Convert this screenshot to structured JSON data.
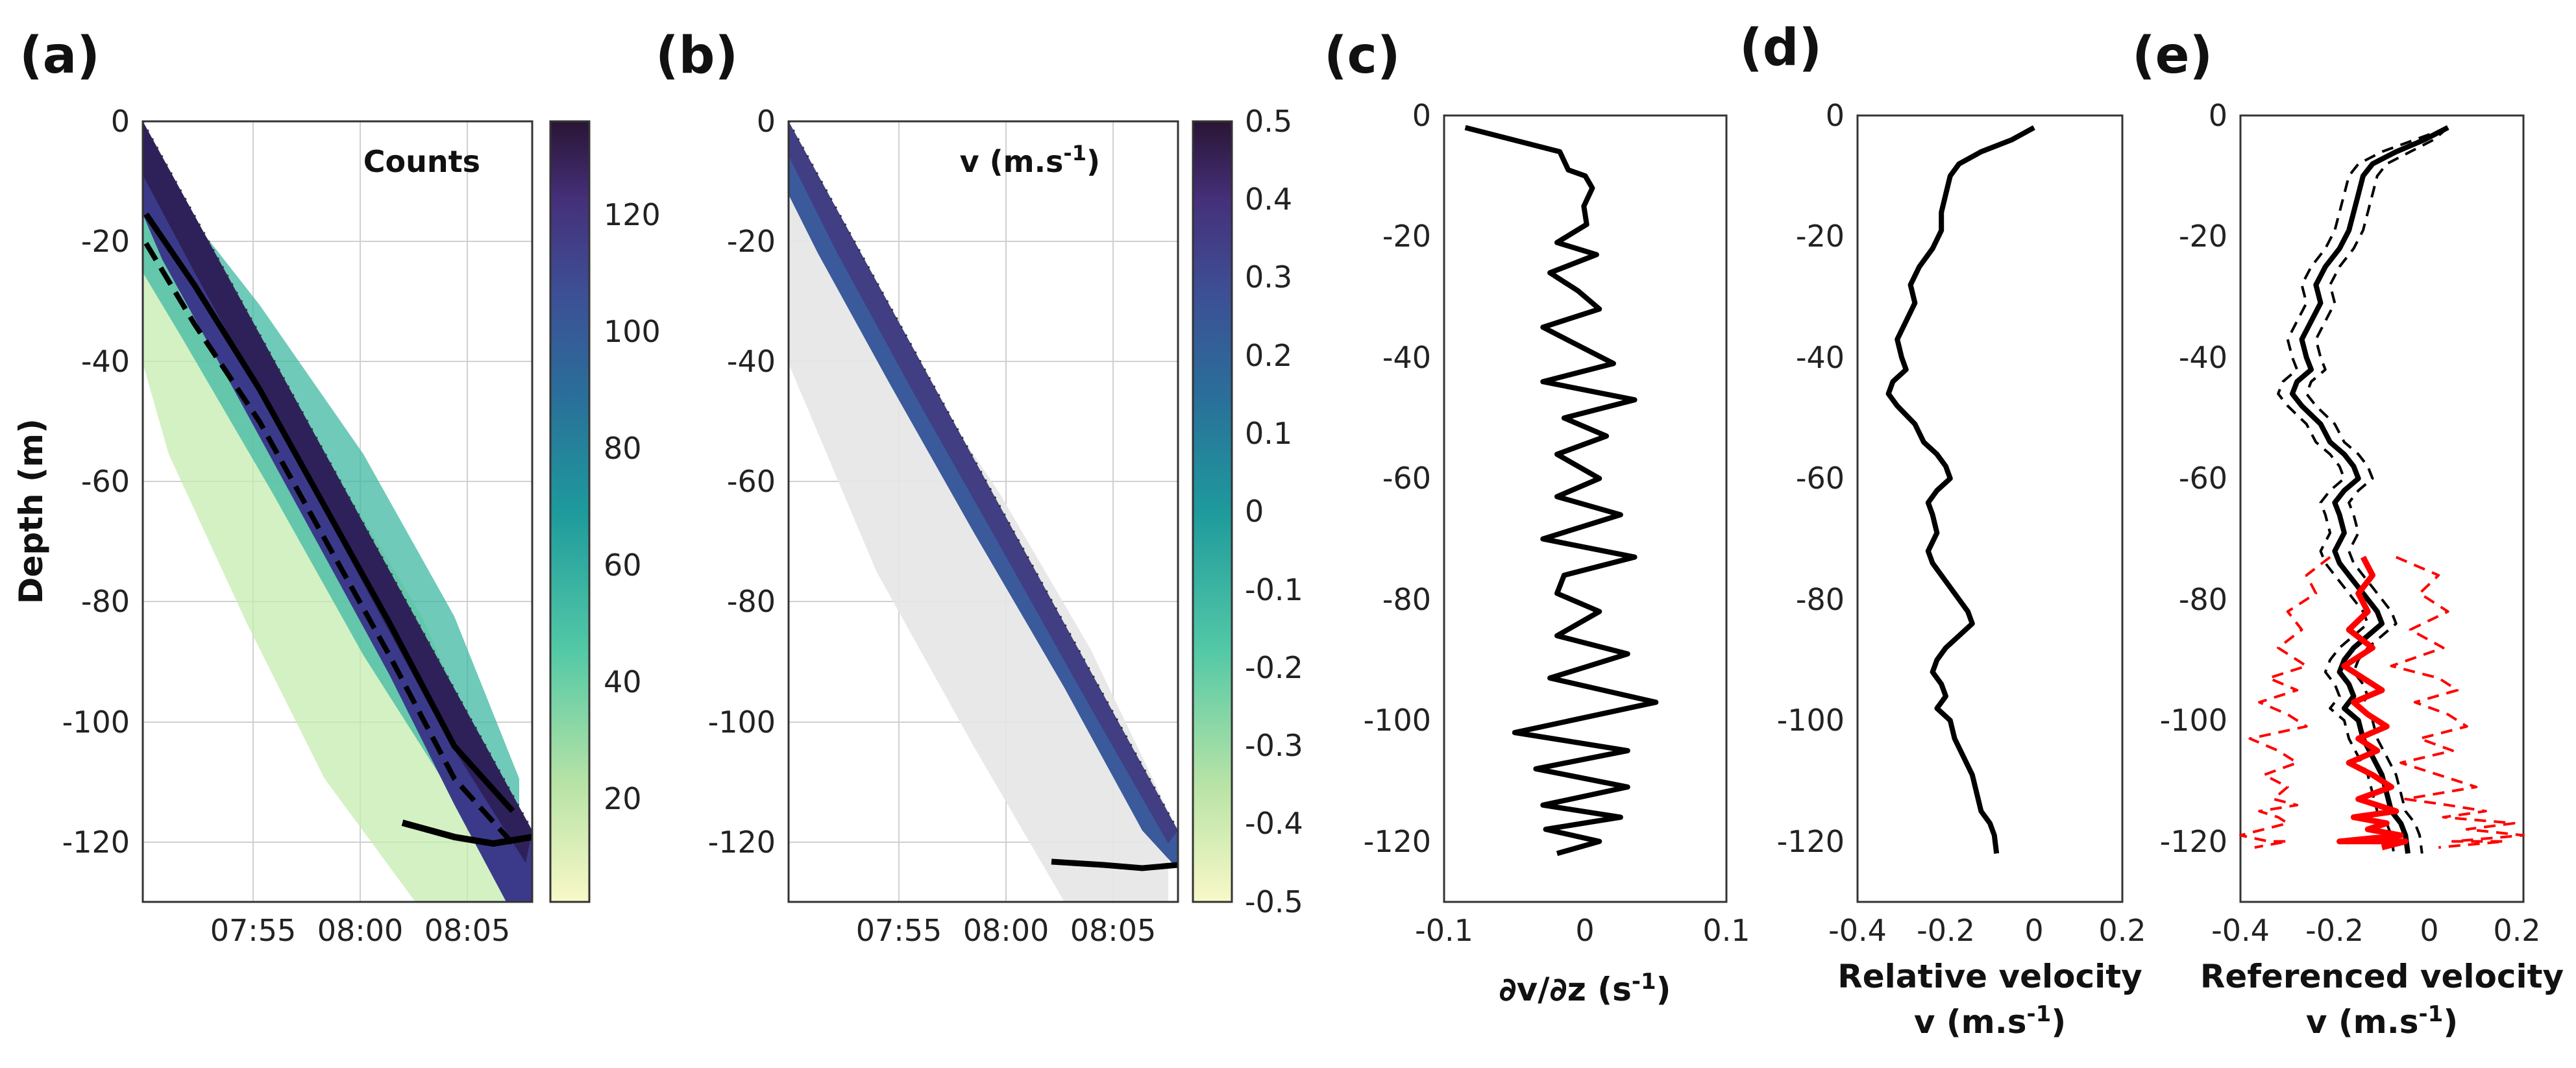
{
  "chart_data": [
    {
      "panel": "(a)",
      "type": "heatmap",
      "ylabel": "Depth (m)",
      "ylim": [
        -130,
        0
      ],
      "yticks": [
        0,
        -20,
        -40,
        -60,
        -80,
        -100,
        -120
      ],
      "xtick_labels": [
        "07:55",
        "08:00",
        "08:05"
      ],
      "inset_label": "Counts",
      "colorbar": {
        "range": [
          0,
          135
        ],
        "ticks": [
          20,
          40,
          60,
          80,
          100,
          120
        ],
        "colors": [
          "#f8f8c8",
          "#b8e3a6",
          "#54c9a6",
          "#1e9a9c",
          "#2a6e9a",
          "#3d4f95",
          "#45307a",
          "#2a1535"
        ]
      }
    },
    {
      "panel": "(b)",
      "type": "heatmap",
      "ylim": [
        -130,
        0
      ],
      "yticks": [
        0,
        -20,
        -40,
        -60,
        -80,
        -100,
        -120
      ],
      "xtick_labels": [
        "07:55",
        "08:00",
        "08:05"
      ],
      "inset_label": "v (m.s",
      "inset_sup": "-1",
      "inset_close": ")",
      "colorbar": {
        "range": [
          -0.5,
          0.5
        ],
        "ticks": [
          "0.5",
          "0.4",
          "0.3",
          "0.2",
          "0.1",
          "0",
          "-0.1",
          "-0.2",
          "-0.3",
          "-0.4",
          "-0.5"
        ]
      }
    },
    {
      "panel": "(c)",
      "type": "line",
      "xlabel": "∂v/∂z (s",
      "xlabel_sup": "-1",
      "xlabel_close": ")",
      "xlim": [
        -0.1,
        0.1
      ],
      "xticks": [
        "-0.1",
        "0",
        "0.1"
      ],
      "ylim": [
        -130,
        0
      ],
      "yticks": [
        0,
        -20,
        -40,
        -60,
        -80,
        -100,
        -120
      ],
      "series": [
        {
          "name": "dvdz",
          "color": "#000000",
          "x": [
            -0.085,
            -0.018,
            -0.012,
            0.0,
            0.005,
            -0.001,
            0.001,
            -0.02,
            0.008,
            -0.025,
            -0.005,
            0.01,
            -0.03,
            -0.005,
            0.02,
            -0.03,
            0.035,
            -0.015,
            0.015,
            -0.02,
            0.01,
            -0.02,
            0.025,
            -0.03,
            0.035,
            -0.015,
            -0.02,
            0.01,
            -0.02,
            0.03,
            -0.025,
            0.05,
            -0.05,
            0.03,
            -0.035,
            0.03,
            -0.03,
            0.025,
            -0.028,
            0.01,
            -0.02
          ],
          "y": [
            -2,
            -6,
            -9,
            -10,
            -12,
            -15,
            -18,
            -21,
            -23,
            -26,
            -29,
            -32,
            -35,
            -38,
            -41,
            -44,
            -47,
            -50,
            -53,
            -56,
            -60,
            -63,
            -66,
            -70,
            -73,
            -76,
            -79,
            -82,
            -86,
            -89,
            -93,
            -97,
            -102,
            -105,
            -108,
            -111,
            -114,
            -116,
            -118,
            -120,
            -122
          ]
        }
      ]
    },
    {
      "panel": "(d)",
      "type": "line",
      "xlabel": "Relative velocity",
      "xlabel2": "v (m.s",
      "xlabel2_sup": "-1",
      "xlabel2_close": ")",
      "xlim": [
        -0.4,
        0.2
      ],
      "xticks": [
        "-0.4",
        "-0.2",
        "0",
        "0.2"
      ],
      "ylim": [
        -130,
        0
      ],
      "yticks": [
        0,
        -20,
        -40,
        -60,
        -80,
        -100,
        -120
      ],
      "series": [
        {
          "name": "relative",
          "color": "#000000",
          "x": [
            0.0,
            -0.05,
            -0.12,
            -0.17,
            -0.19,
            -0.2,
            -0.21,
            -0.21,
            -0.23,
            -0.26,
            -0.28,
            -0.27,
            -0.29,
            -0.31,
            -0.3,
            -0.29,
            -0.32,
            -0.33,
            -0.31,
            -0.27,
            -0.25,
            -0.22,
            -0.2,
            -0.19,
            -0.22,
            -0.24,
            -0.23,
            -0.22,
            -0.24,
            -0.23,
            -0.21,
            -0.19,
            -0.17,
            -0.15,
            -0.14,
            -0.17,
            -0.2,
            -0.22,
            -0.23,
            -0.21,
            -0.2,
            -0.22,
            -0.19,
            -0.18,
            -0.16,
            -0.14,
            -0.13,
            -0.12,
            -0.1,
            -0.09,
            -0.085
          ],
          "y": [
            -2,
            -4,
            -6,
            -8,
            -10,
            -13,
            -16,
            -19,
            -22,
            -25,
            -28,
            -31,
            -34,
            -37,
            -40,
            -42,
            -44,
            -46,
            -48,
            -51,
            -54,
            -56,
            -58,
            -60,
            -62,
            -64,
            -66,
            -69,
            -72,
            -74,
            -76,
            -78,
            -80,
            -82,
            -84,
            -86,
            -88,
            -90,
            -92,
            -94,
            -96,
            -98,
            -100,
            -103,
            -106,
            -109,
            -112,
            -115,
            -117,
            -119,
            -122
          ]
        }
      ]
    },
    {
      "panel": "(e)",
      "type": "line",
      "xlabel": "Referenced velocity",
      "xlabel2": "v (m.s",
      "xlabel2_sup": "-1",
      "xlabel2_close": ")",
      "xlim": [
        -0.4,
        0.2
      ],
      "xticks": [
        "-0.4",
        "-0.2",
        "0",
        "0.2"
      ],
      "ylim": [
        -130,
        0
      ],
      "yticks": [
        0,
        -20,
        -40,
        -60,
        -80,
        -100,
        -120
      ],
      "series": [
        {
          "name": "referenced",
          "color": "#000000",
          "style": "solid",
          "x": [
            0.04,
            -0.01,
            -0.07,
            -0.12,
            -0.14,
            -0.15,
            -0.16,
            -0.17,
            -0.19,
            -0.22,
            -0.24,
            -0.23,
            -0.25,
            -0.27,
            -0.26,
            -0.25,
            -0.28,
            -0.29,
            -0.27,
            -0.23,
            -0.21,
            -0.18,
            -0.16,
            -0.15,
            -0.18,
            -0.2,
            -0.19,
            -0.18,
            -0.2,
            -0.19,
            -0.17,
            -0.15,
            -0.13,
            -0.11,
            -0.1,
            -0.13,
            -0.16,
            -0.18,
            -0.19,
            -0.17,
            -0.16,
            -0.18,
            -0.15,
            -0.14,
            -0.12,
            -0.1,
            -0.09,
            -0.08,
            -0.06,
            -0.05,
            -0.045
          ],
          "y": [
            -2,
            -4,
            -6,
            -8,
            -10,
            -13,
            -16,
            -19,
            -22,
            -25,
            -28,
            -31,
            -34,
            -37,
            -40,
            -42,
            -44,
            -46,
            -48,
            -51,
            -54,
            -56,
            -58,
            -60,
            -62,
            -64,
            -66,
            -69,
            -72,
            -74,
            -76,
            -78,
            -80,
            -82,
            -84,
            -86,
            -88,
            -90,
            -92,
            -94,
            -96,
            -98,
            -100,
            -103,
            -106,
            -109,
            -112,
            -115,
            -117,
            -119,
            -122
          ]
        },
        {
          "name": "referenced-upper",
          "color": "#000000",
          "style": "dashed",
          "x": [
            0.04,
            0.01,
            -0.04,
            -0.09,
            -0.11,
            -0.12,
            -0.13,
            -0.14,
            -0.16,
            -0.19,
            -0.21,
            -0.2,
            -0.22,
            -0.24,
            -0.23,
            -0.22,
            -0.25,
            -0.26,
            -0.24,
            -0.2,
            -0.18,
            -0.15,
            -0.13,
            -0.12,
            -0.15,
            -0.17,
            -0.16,
            -0.15,
            -0.17,
            -0.16,
            -0.14,
            -0.12,
            -0.1,
            -0.08,
            -0.07,
            -0.1,
            -0.13,
            -0.15,
            -0.16,
            -0.14,
            -0.13,
            -0.15,
            -0.12,
            -0.11,
            -0.09,
            -0.07,
            -0.06,
            -0.05,
            -0.03,
            -0.02,
            -0.015
          ],
          "y": [
            -2,
            -4,
            -6,
            -8,
            -10,
            -13,
            -16,
            -19,
            -22,
            -25,
            -28,
            -31,
            -34,
            -37,
            -40,
            -42,
            -44,
            -46,
            -48,
            -51,
            -54,
            -56,
            -58,
            -60,
            -62,
            -64,
            -66,
            -69,
            -72,
            -74,
            -76,
            -78,
            -80,
            -82,
            -84,
            -86,
            -88,
            -90,
            -92,
            -94,
            -96,
            -98,
            -100,
            -103,
            -106,
            -109,
            -112,
            -115,
            -117,
            -119,
            -122
          ]
        },
        {
          "name": "referenced-lower",
          "color": "#000000",
          "style": "dashed",
          "x": [
            0.04,
            -0.03,
            -0.1,
            -0.15,
            -0.17,
            -0.18,
            -0.19,
            -0.2,
            -0.22,
            -0.25,
            -0.27,
            -0.26,
            -0.28,
            -0.3,
            -0.29,
            -0.28,
            -0.31,
            -0.32,
            -0.3,
            -0.26,
            -0.24,
            -0.21,
            -0.19,
            -0.18,
            -0.21,
            -0.23,
            -0.22,
            -0.21,
            -0.23,
            -0.22,
            -0.2,
            -0.18,
            -0.16,
            -0.14,
            -0.13,
            -0.16,
            -0.19,
            -0.21,
            -0.22,
            -0.2,
            -0.19,
            -0.21,
            -0.18,
            -0.17,
            -0.15,
            -0.13,
            -0.12,
            -0.11,
            -0.09,
            -0.08,
            -0.075
          ],
          "y": [
            -2,
            -4,
            -6,
            -8,
            -10,
            -13,
            -16,
            -19,
            -22,
            -25,
            -28,
            -31,
            -34,
            -37,
            -40,
            -42,
            -44,
            -46,
            -48,
            -51,
            -54,
            -56,
            -58,
            -60,
            -62,
            -64,
            -66,
            -69,
            -72,
            -74,
            -76,
            -78,
            -80,
            -82,
            -84,
            -86,
            -88,
            -90,
            -92,
            -94,
            -96,
            -98,
            -100,
            -103,
            -106,
            -109,
            -112,
            -115,
            -117,
            -119,
            -122
          ]
        },
        {
          "name": "ship-adcp",
          "color": "#ff0000",
          "style": "solid",
          "x": [
            -0.14,
            -0.12,
            -0.15,
            -0.13,
            -0.17,
            -0.12,
            -0.18,
            -0.14,
            -0.1,
            -0.16,
            -0.13,
            -0.09,
            -0.15,
            -0.11,
            -0.17,
            -0.12,
            -0.08,
            -0.15,
            -0.11,
            -0.07,
            -0.16,
            -0.09,
            -0.13,
            -0.06,
            -0.19,
            -0.05,
            -0.1
          ],
          "y": [
            -73,
            -76,
            -79,
            -82,
            -85,
            -88,
            -91,
            -93,
            -95,
            -97,
            -99,
            -101,
            -103,
            -105,
            -107,
            -109,
            -111,
            -113,
            -114,
            -115,
            -116,
            -117,
            -118,
            -119,
            -120,
            -120,
            -121
          ]
        },
        {
          "name": "ship-adcp-upper",
          "color": "#ff0000",
          "style": "dashed",
          "x": [
            -0.07,
            0.02,
            -0.02,
            0.04,
            -0.04,
            0.03,
            -0.08,
            0.02,
            0.06,
            -0.03,
            0.04,
            0.08,
            -0.02,
            0.05,
            -0.06,
            0.02,
            0.1,
            -0.05,
            0.04,
            0.12,
            0.03,
            0.18,
            0.08,
            0.2,
            0.05,
            0.16,
            0.02
          ],
          "y": [
            -73,
            -76,
            -79,
            -82,
            -85,
            -88,
            -91,
            -93,
            -95,
            -97,
            -99,
            -101,
            -103,
            -105,
            -107,
            -109,
            -111,
            -113,
            -114,
            -115,
            -116,
            -117,
            -118,
            -119,
            -120,
            -120,
            -121
          ]
        },
        {
          "name": "ship-adcp-lower",
          "color": "#ff0000",
          "style": "dashed",
          "x": [
            -0.21,
            -0.26,
            -0.24,
            -0.3,
            -0.27,
            -0.32,
            -0.26,
            -0.34,
            -0.28,
            -0.36,
            -0.3,
            -0.26,
            -0.38,
            -0.32,
            -0.28,
            -0.35,
            -0.3,
            -0.33,
            -0.28,
            -0.36,
            -0.32,
            -0.3,
            -0.35,
            -0.4,
            -0.34,
            -0.3,
            -0.37
          ],
          "y": [
            -73,
            -76,
            -79,
            -82,
            -85,
            -88,
            -91,
            -93,
            -95,
            -97,
            -99,
            -101,
            -103,
            -105,
            -107,
            -109,
            -111,
            -113,
            -114,
            -115,
            -116,
            -117,
            -118,
            -119,
            -120,
            -120,
            -121
          ]
        }
      ]
    }
  ]
}
